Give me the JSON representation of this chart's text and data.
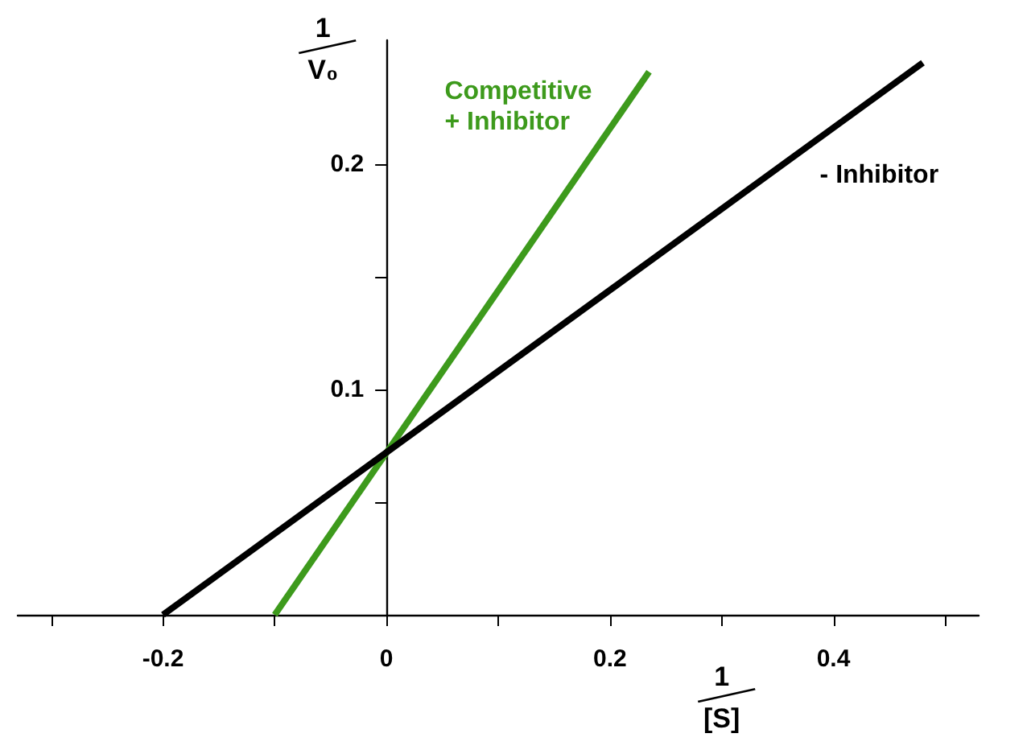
{
  "chart_data": {
    "type": "line",
    "xlabel": "1/[S]",
    "ylabel": "1/V₀",
    "xlim": [
      -0.33,
      0.53
    ],
    "ylim": [
      0,
      0.255
    ],
    "xticks": [
      {
        "value": -0.3,
        "label": null
      },
      -0.2,
      {
        "value": -0.1,
        "label": null
      },
      0,
      {
        "value": 0.1,
        "label": null
      },
      0.2,
      {
        "value": 0.3,
        "label": null
      },
      0.4,
      {
        "value": 0.5,
        "label": null
      }
    ],
    "yticks": [
      {
        "value": 0.05,
        "label": null
      },
      0.1,
      {
        "value": 0.15,
        "label": null
      },
      0.2
    ],
    "series": [
      {
        "name": "Competitive + Inhibitor",
        "color": "#3d9a1c",
        "x": [
          -0.1,
          0.235
        ],
        "values": [
          0,
          0.241
        ]
      },
      {
        "name": "- Inhibitor",
        "color": "#000000",
        "x": [
          -0.2,
          0.48
        ],
        "values": [
          0,
          0.245
        ]
      }
    ],
    "grid": false,
    "legend": false,
    "marker": "none",
    "line_style": "solid"
  }
}
